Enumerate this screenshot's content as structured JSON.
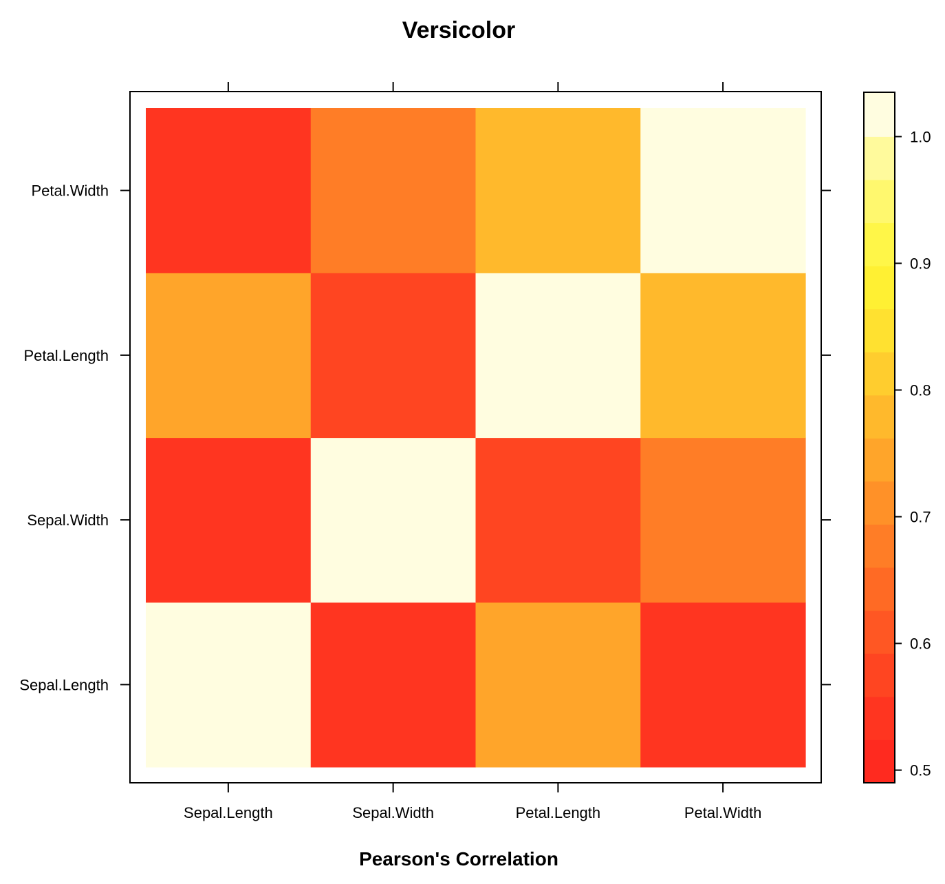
{
  "chart_data": {
    "type": "heatmap",
    "title": "Versicolor",
    "xlabel": "Pearson's Correlation",
    "ylabel": "",
    "x_categories": [
      "Sepal.Length",
      "Sepal.Width",
      "Petal.Length",
      "Petal.Width"
    ],
    "y_categories": [
      "Sepal.Length",
      "Sepal.Width",
      "Petal.Length",
      "Petal.Width"
    ],
    "values": [
      [
        1.0,
        0.53,
        0.75,
        0.55
      ],
      [
        0.53,
        1.0,
        0.56,
        0.66
      ],
      [
        0.75,
        0.56,
        1.0,
        0.79
      ],
      [
        0.55,
        0.66,
        0.79,
        1.0
      ]
    ],
    "colorbar": {
      "range": [
        0.49,
        1.035
      ],
      "ticks": [
        "0.5",
        "0.6",
        "0.7",
        "0.8",
        "0.9",
        "1.0"
      ],
      "bins": [
        {
          "from": 0.49,
          "to": 0.524,
          "color": "#FF2A1F"
        },
        {
          "from": 0.524,
          "to": 0.558,
          "color": "#FF3520"
        },
        {
          "from": 0.558,
          "to": 0.592,
          "color": "#FF4521"
        },
        {
          "from": 0.592,
          "to": 0.626,
          "color": "#FF5723"
        },
        {
          "from": 0.626,
          "to": 0.66,
          "color": "#FF6A24"
        },
        {
          "from": 0.66,
          "to": 0.694,
          "color": "#FF7D26"
        },
        {
          "from": 0.694,
          "to": 0.728,
          "color": "#FF9128"
        },
        {
          "from": 0.728,
          "to": 0.762,
          "color": "#FFA52A"
        },
        {
          "from": 0.762,
          "to": 0.796,
          "color": "#FFB92C"
        },
        {
          "from": 0.796,
          "to": 0.83,
          "color": "#FFCD2E"
        },
        {
          "from": 0.83,
          "to": 0.864,
          "color": "#FFE130"
        },
        {
          "from": 0.864,
          "to": 0.898,
          "color": "#FFF033"
        },
        {
          "from": 0.898,
          "to": 0.932,
          "color": "#FFF648"
        },
        {
          "from": 0.932,
          "to": 0.966,
          "color": "#FFF86E"
        },
        {
          "from": 0.966,
          "to": 1.0,
          "color": "#FFFA9C"
        },
        {
          "from": 1.0,
          "to": 1.035,
          "color": "#FFFDE0"
        }
      ]
    },
    "grid": false
  }
}
